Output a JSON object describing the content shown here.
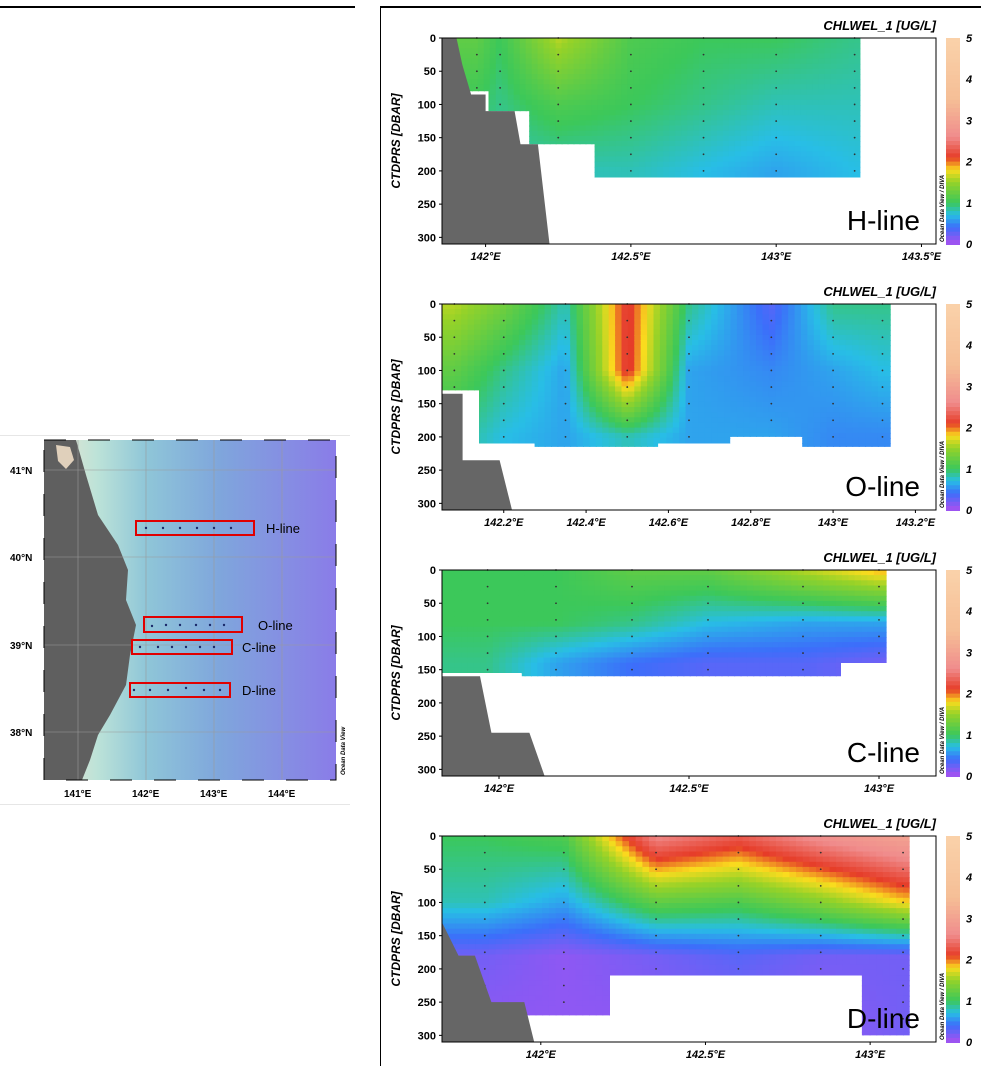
{
  "map": {
    "lat_labels": [
      "41°N",
      "40°N",
      "39°N",
      "38°N"
    ],
    "lon_labels": [
      "141°E",
      "142°E",
      "143°E",
      "144°E"
    ],
    "credit": "Ocean Data View",
    "lines": [
      {
        "name": "H-line"
      },
      {
        "name": "O-line"
      },
      {
        "name": "C-line"
      },
      {
        "name": "D-line"
      }
    ]
  },
  "panels": [
    {
      "section_label": "H-line",
      "title": "CHLWEL_1 [UG/L]",
      "ylabel": "CTDPRS [DBAR]",
      "y_ticks": [
        "0",
        "50",
        "100",
        "150",
        "200",
        "250",
        "300"
      ],
      "x_ticks": [
        "142°E",
        "142.5°E",
        "143°E",
        "143.5°E"
      ],
      "colorbar_ticks": [
        "5",
        "4",
        "3",
        "2",
        "1",
        "0"
      ],
      "credit": "Ocean Data View / DIVA"
    },
    {
      "section_label": "O-line",
      "title": "CHLWEL_1 [UG/L]",
      "ylabel": "CTDPRS [DBAR]",
      "y_ticks": [
        "0",
        "50",
        "100",
        "150",
        "200",
        "250",
        "300"
      ],
      "x_ticks": [
        "142.2°E",
        "142.4°E",
        "142.6°E",
        "142.8°E",
        "143°E",
        "143.2°E"
      ],
      "colorbar_ticks": [
        "5",
        "4",
        "3",
        "2",
        "1",
        "0"
      ],
      "credit": "Ocean Data View / DIVA"
    },
    {
      "section_label": "C-line",
      "title": "CHLWEL_1 [UG/L]",
      "ylabel": "CTDPRS [DBAR]",
      "y_ticks": [
        "0",
        "50",
        "100",
        "150",
        "200",
        "250",
        "300"
      ],
      "x_ticks": [
        "142°E",
        "142.5°E",
        "143°E"
      ],
      "colorbar_ticks": [
        "5",
        "4",
        "3",
        "2",
        "1",
        "0"
      ],
      "credit": "Ocean Data View / DIVA"
    },
    {
      "section_label": "D-line",
      "title": "CHLWEL_1 [UG/L]",
      "ylabel": "CTDPRS [DBAR]",
      "y_ticks": [
        "0",
        "50",
        "100",
        "150",
        "200",
        "250",
        "300"
      ],
      "x_ticks": [
        "142°E",
        "142.5°E",
        "143°E"
      ],
      "colorbar_ticks": [
        "5",
        "4",
        "3",
        "2",
        "1",
        "0"
      ],
      "credit": "Ocean Data View / DIVA"
    }
  ],
  "chart_data": [
    {
      "type": "heatmap",
      "title": "CHLWEL_1 [UG/L]",
      "xlabel": "",
      "ylabel": "CTDPRS [DBAR]",
      "xlim": [
        141.85,
        143.55
      ],
      "ylim": [
        310,
        0
      ],
      "clim": [
        0,
        5
      ],
      "stations_lon": [
        141.97,
        142.05,
        142.25,
        142.5,
        142.75,
        143.0,
        143.27
      ],
      "section": "H-line",
      "depth_max": [
        80,
        110,
        160,
        210,
        210,
        210,
        210
      ],
      "values": [
        [
          1.2,
          1.0,
          0.9
        ],
        [
          1.0,
          0.9,
          0.8
        ],
        [
          1.6,
          1.1,
          0.8
        ],
        [
          1.1,
          1.0,
          0.8
        ],
        [
          1.0,
          0.9,
          0.7
        ],
        [
          1.0,
          0.8,
          0.6
        ],
        [
          0.9,
          0.8,
          0.7
        ]
      ],
      "value_depths": [
        0,
        100,
        200
      ]
    },
    {
      "type": "heatmap",
      "title": "CHLWEL_1 [UG/L]",
      "xlabel": "",
      "ylabel": "CTDPRS [DBAR]",
      "xlim": [
        142.05,
        143.25
      ],
      "ylim": [
        310,
        0
      ],
      "clim": [
        0,
        5
      ],
      "stations_lon": [
        142.08,
        142.2,
        142.35,
        142.5,
        142.65,
        142.85,
        143.0,
        143.12
      ],
      "section": "O-line",
      "depth_max": [
        130,
        210,
        215,
        215,
        210,
        200,
        215,
        215
      ],
      "values": [
        [
          1.6,
          1.2,
          0.9
        ],
        [
          1.3,
          0.9,
          0.7
        ],
        [
          0.8,
          0.6,
          0.6
        ],
        [
          2.2,
          2.2,
          0.8
        ],
        [
          0.9,
          0.6,
          0.6
        ],
        [
          0.3,
          0.5,
          0.6
        ],
        [
          0.9,
          0.6,
          0.5
        ],
        [
          0.9,
          0.7,
          0.5
        ]
      ],
      "value_depths": [
        0,
        100,
        200
      ]
    },
    {
      "type": "heatmap",
      "title": "CHLWEL_1 [UG/L]",
      "xlabel": "",
      "ylabel": "CTDPRS [DBAR]",
      "xlim": [
        141.85,
        143.15
      ],
      "ylim": [
        310,
        0
      ],
      "clim": [
        0,
        5
      ],
      "stations_lon": [
        141.97,
        142.15,
        142.35,
        142.55,
        142.8,
        143.0
      ],
      "section": "C-line",
      "depth_max": [
        155,
        160,
        160,
        160,
        160,
        140
      ],
      "values": [
        [
          1.0,
          1.0,
          0.9
        ],
        [
          1.0,
          1.0,
          0.6
        ],
        [
          1.2,
          0.9,
          0.4
        ],
        [
          1.2,
          0.7,
          0.3
        ],
        [
          1.6,
          0.6,
          0.3
        ],
        [
          1.9,
          0.6,
          0.2
        ]
      ],
      "value_depths": [
        0,
        80,
        140
      ]
    },
    {
      "type": "heatmap",
      "title": "CHLWEL_1 [UG/L]",
      "xlabel": "",
      "ylabel": "CTDPRS [DBAR]",
      "xlim": [
        141.7,
        143.2
      ],
      "ylim": [
        310,
        0
      ],
      "clim": [
        0,
        5
      ],
      "stations_lon": [
        141.83,
        142.07,
        142.35,
        142.6,
        142.85,
        143.1
      ],
      "section": "D-line",
      "depth_max": [
        300,
        270,
        210,
        210,
        210,
        300
      ],
      "values": [
        [
          1.0,
          0.8,
          0.2,
          0.1
        ],
        [
          1.1,
          0.6,
          0.1,
          0.1
        ],
        [
          2.6,
          1.2,
          0.2,
          0.1
        ],
        [
          2.3,
          1.1,
          0.3,
          0.1
        ],
        [
          2.7,
          1.4,
          0.2,
          0.1
        ],
        [
          3.0,
          1.8,
          0.2,
          0.2
        ]
      ],
      "value_depths": [
        0,
        100,
        180,
        280
      ]
    }
  ]
}
